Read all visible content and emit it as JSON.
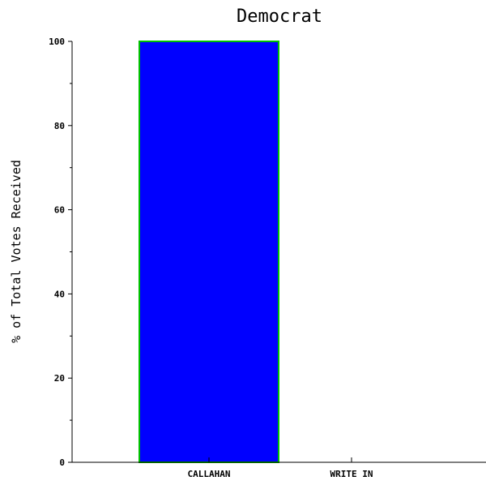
{
  "chart_data": {
    "type": "bar",
    "title": "Democrat",
    "xlabel": "",
    "ylabel": "% of Total Votes Received",
    "categories": [
      "CALLAHAN",
      "WRITE IN"
    ],
    "values": [
      100,
      0
    ],
    "ylim": [
      0,
      100
    ],
    "y_ticks": [
      0,
      20,
      40,
      60,
      80,
      100
    ],
    "grid": false,
    "colors": {
      "bar_fill": "#0000ff",
      "bar_edge": "#00c000",
      "axis": "#000000"
    }
  }
}
